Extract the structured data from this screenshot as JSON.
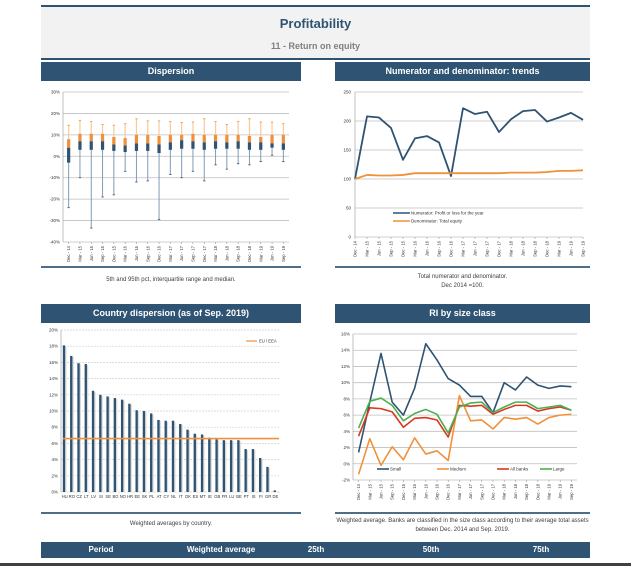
{
  "header": {
    "title": "Profitability",
    "subtitle": "11 - Return on equity"
  },
  "panels": {
    "dispersion": {
      "title": "Dispersion",
      "caption": "5th and 95th pct, interquartile range and median."
    },
    "trends": {
      "title": "Numerator and denominator: trends",
      "caption_line1": "Total numerator and denominator.",
      "caption_line2": "Dec 2014 =100."
    },
    "country": {
      "title": "Country dispersion (as of Sep. 2019)",
      "caption": "Weighted averages by country."
    },
    "size": {
      "title": "RI by size class",
      "caption_line1": "Weighted average. Banks are classified in the size class according to their average total assets",
      "caption_line2": "between Dec. 2014 and Sep. 2019."
    }
  },
  "footer": {
    "columns": [
      "Period",
      "Weighted average",
      "25th",
      "50th",
      "75th"
    ]
  },
  "colors": {
    "navy": "#2e5373",
    "orange": "#f0913a",
    "red": "#d9381e",
    "green": "#4caf50",
    "light_orange": "#f8c99a",
    "light_blue": "#a9bccc"
  },
  "chart_data": [
    {
      "id": "dispersion",
      "type": "box",
      "title": "Dispersion",
      "categories": [
        "Dec - 14",
        "Mar - 15",
        "Jun - 15",
        "Sep - 15",
        "Dec - 15",
        "Mar - 16",
        "Jun - 16",
        "Sep - 16",
        "Dec - 16",
        "Mar - 17",
        "Jun - 17",
        "Sep - 17",
        "Dec - 17",
        "Mar - 18",
        "Jun - 18",
        "Sep - 18",
        "Dec - 18",
        "Mar - 19",
        "Jun - 19",
        "Sep - 19"
      ],
      "y_ticks": [
        "30%",
        "20%",
        "10%",
        "0%",
        "-10%",
        "-20%",
        "-30%",
        "-40%"
      ],
      "ylim": [
        -40,
        30
      ],
      "p5": [
        -24,
        -10,
        -33.5,
        -19,
        -18,
        -7,
        -12,
        -11.5,
        -29.5,
        -8.5,
        -10,
        -7,
        -11.5,
        -4,
        -6,
        -3.5,
        -4,
        -2.5,
        0.5,
        -2.5
      ],
      "p25": [
        -3,
        3,
        3,
        3,
        2.5,
        2,
        2.5,
        2.5,
        1.5,
        3,
        3.5,
        3.5,
        3,
        3.5,
        3.5,
        3.5,
        3,
        3,
        4,
        3
      ],
      "median": [
        4,
        7,
        7,
        7,
        5.5,
        5,
        6,
        6,
        5.5,
        6.5,
        7.5,
        7,
        6.5,
        7,
        6.5,
        7,
        6.5,
        6.5,
        6,
        6
      ],
      "p75": [
        8,
        10.5,
        10.5,
        10.5,
        9,
        8.5,
        10,
        10,
        9.5,
        10,
        10,
        10.5,
        10,
        10,
        10,
        10,
        9.5,
        9,
        10,
        10
      ],
      "p95": [
        14.5,
        16.8,
        16.2,
        14.8,
        14.5,
        15.2,
        17.5,
        16.5,
        16.5,
        16.2,
        15.8,
        16,
        17.5,
        16.2,
        14.8,
        16.2,
        17.5,
        16,
        16,
        15.2
      ],
      "grid": true
    },
    {
      "id": "trends",
      "type": "line",
      "title": "Numerator and denominator: trends",
      "categories": [
        "Dec - 14",
        "Mar - 15",
        "Jun - 15",
        "Sep - 15",
        "Dec - 15",
        "Mar - 16",
        "Jun - 16",
        "Sep - 16",
        "Dec - 16",
        "Mar - 17",
        "Jun - 17",
        "Sep - 17",
        "Dec - 17",
        "Mar - 18",
        "Jun - 18",
        "Sep - 18",
        "Dec - 18",
        "Mar - 19",
        "Jun - 19",
        "Sep - 19"
      ],
      "ylim": [
        0,
        250
      ],
      "y_ticks": [
        0,
        50,
        100,
        150,
        200,
        250
      ],
      "series": [
        {
          "name": "Numerator: Profit or loss for the year",
          "color": "#2e5373",
          "values": [
            100,
            208,
            206,
            188,
            133,
            170,
            174,
            163,
            105,
            222,
            212,
            216,
            181,
            203,
            217,
            219,
            199,
            206,
            214,
            202
          ]
        },
        {
          "name": "Denominator: Total equity",
          "color": "#f0913a",
          "values": [
            100,
            107,
            106,
            106,
            107,
            110,
            110,
            110,
            110,
            110,
            110,
            110,
            110,
            111,
            111,
            111,
            112,
            114,
            114,
            115
          ]
        }
      ],
      "legend": "bottom-left",
      "grid": true
    },
    {
      "id": "country",
      "type": "bar",
      "title": "Country dispersion (as of Sep. 2019)",
      "categories": [
        "HU",
        "RO",
        "CZ",
        "LT",
        "LV",
        "SI",
        "SE",
        "BG",
        "NO",
        "HR",
        "EE",
        "SK",
        "PL",
        "AT",
        "CY",
        "NL",
        "IT",
        "DK",
        "ES",
        "MT",
        "IE",
        "GB",
        "FR",
        "LU",
        "BE",
        "PT",
        "IS",
        "FI",
        "GR",
        "DE"
      ],
      "values": [
        18.1,
        16.8,
        15.9,
        15.8,
        12.5,
        12.0,
        11.8,
        11.6,
        11.4,
        10.9,
        10.1,
        10.0,
        9.7,
        8.9,
        8.8,
        8.8,
        8.4,
        7.7,
        7.2,
        7.1,
        6.7,
        6.5,
        6.4,
        6.4,
        6.4,
        5.3,
        5.3,
        4.2,
        3.1,
        0.2
      ],
      "reference_line": {
        "name": "EU / EEA",
        "value": 6.6,
        "color": "#f0913a"
      },
      "ylim": [
        0,
        20
      ],
      "y_ticks": [
        "0%",
        "2%",
        "4%",
        "6%",
        "8%",
        "10%",
        "12%",
        "14%",
        "16%",
        "18%",
        "20%"
      ],
      "legend": "top-right",
      "grid": true
    },
    {
      "id": "size",
      "type": "line",
      "title": "RI by size class",
      "categories": [
        "Dec - 14",
        "Mar - 15",
        "Jun - 15",
        "Sep - 15",
        "Dec - 15",
        "Mar - 16",
        "Jun - 16",
        "Sep - 16",
        "Dec - 16",
        "Mar - 17",
        "Jun - 17",
        "Sep - 17",
        "Dec - 17",
        "Mar - 18",
        "Jun - 18",
        "Sep - 18",
        "Dec - 18",
        "Mar - 19",
        "Jun - 19",
        "Sep - 19"
      ],
      "ylim": [
        -2,
        16
      ],
      "y_ticks": [
        "-2%",
        "0%",
        "2%",
        "4%",
        "6%",
        "8%",
        "10%",
        "12%",
        "14%",
        "16%"
      ],
      "series": [
        {
          "name": "Small",
          "color": "#2e5373",
          "values": [
            1.4,
            7.6,
            13.6,
            7.6,
            6.0,
            9.3,
            14.8,
            12.8,
            10.5,
            9.7,
            8.3,
            8.3,
            6.3,
            10.0,
            9.1,
            10.7,
            9.7,
            9.3,
            9.6,
            9.5
          ]
        },
        {
          "name": "Medium",
          "color": "#f0913a",
          "values": [
            -1.3,
            3.1,
            -0.2,
            2.1,
            0.5,
            3.2,
            1.2,
            1.6,
            0.4,
            8.4,
            5.3,
            5.4,
            4.3,
            5.7,
            5.5,
            5.7,
            4.9,
            5.7,
            6.0,
            6.1
          ]
        },
        {
          "name": "All banks",
          "color": "#d9381e",
          "values": [
            3.4,
            6.9,
            6.8,
            6.4,
            4.5,
            5.6,
            5.7,
            5.4,
            3.3,
            7.2,
            7.1,
            7.2,
            6.1,
            6.7,
            7.2,
            7.2,
            6.5,
            6.8,
            7.0,
            6.6
          ]
        },
        {
          "name": "Large",
          "color": "#4caf50",
          "values": [
            4.4,
            7.7,
            8.1,
            7.2,
            5.3,
            6.2,
            6.7,
            6.1,
            3.8,
            7.0,
            7.5,
            7.6,
            6.3,
            7.0,
            7.6,
            7.6,
            6.8,
            7.0,
            7.2,
            6.6
          ]
        }
      ],
      "legend": "bottom",
      "grid": true
    }
  ]
}
